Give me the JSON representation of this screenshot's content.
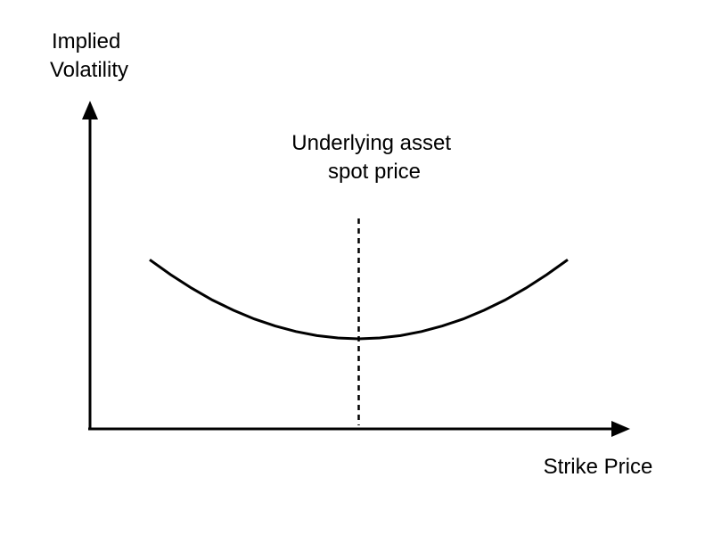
{
  "chart_data": {
    "type": "line",
    "ylabel_lines": [
      "Implied",
      "Volatility"
    ],
    "xlabel": "Strike Price",
    "annotation_lines": [
      "Underlying asset",
      "spot price"
    ],
    "x_range": [
      0,
      100
    ],
    "y_range": [
      0,
      100
    ],
    "series": [
      {
        "x": [
          0,
          5,
          10,
          15,
          20,
          25,
          30,
          35,
          40,
          45,
          50,
          55,
          60,
          65,
          70,
          75,
          80,
          85,
          90,
          95,
          100
        ],
        "y": [
          58,
          52.9,
          48.3,
          44.2,
          40.7,
          37.7,
          35.3,
          33.4,
          32,
          31.2,
          30.9,
          31.2,
          32,
          33.4,
          35.3,
          37.7,
          40.7,
          44.2,
          48.3,
          52.9,
          58
        ]
      }
    ],
    "spot_price_x": 50,
    "grid": false,
    "colors": {
      "line": "#000000",
      "axis": "#000000",
      "background": "#ffffff"
    }
  }
}
